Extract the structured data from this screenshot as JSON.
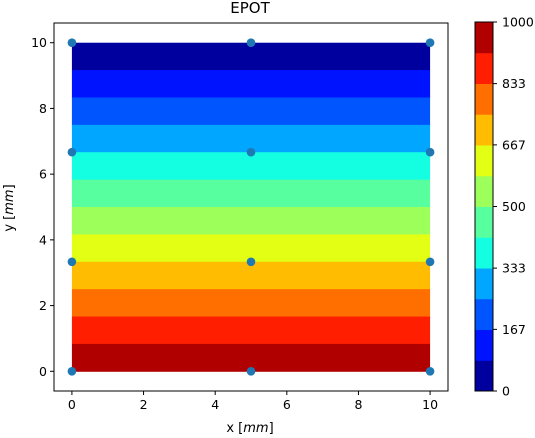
{
  "chart_data": {
    "type": "heatmap",
    "title": "EPOT",
    "xlabel": "x [mm]",
    "ylabel": "y [mm]",
    "xlim": [
      -0.5,
      10.5
    ],
    "ylim": [
      -0.6,
      10.6
    ],
    "x_ticks": [
      0,
      2,
      4,
      6,
      8,
      10
    ],
    "y_ticks": [
      0,
      2,
      4,
      6,
      8,
      10
    ],
    "field": {
      "x_range": [
        0,
        10
      ],
      "y_range": [
        0,
        10
      ],
      "description_values": "EPOT decreases linearly from 1000 at y=0 to 0 at y=10",
      "value_at_y0": 1000,
      "value_at_y10": 0
    },
    "contour_levels": [
      0,
      83.3,
      166.7,
      250,
      333.3,
      416.7,
      500,
      583.3,
      666.7,
      750,
      833.3,
      916.7,
      1000
    ],
    "level_colors": [
      "#00009f",
      "#0013ff",
      "#0055ff",
      "#00a6ff",
      "#14ffe2",
      "#58ff9e",
      "#9cff5a",
      "#e2ff14",
      "#ffbc00",
      "#ff6f00",
      "#ff1f00",
      "#b00000"
    ],
    "colorbar": {
      "ticks": [
        0,
        167,
        333,
        500,
        667,
        833,
        1000
      ],
      "tick_labels": [
        "0",
        "167",
        "333",
        "500",
        "667",
        "833",
        "1000"
      ],
      "range": [
        0,
        1000
      ]
    },
    "nodes": {
      "color": "#1f77b4",
      "points": [
        [
          0,
          0
        ],
        [
          5,
          0
        ],
        [
          10,
          0
        ],
        [
          0,
          3.333
        ],
        [
          5,
          3.333
        ],
        [
          10,
          3.333
        ],
        [
          0,
          6.667
        ],
        [
          5,
          6.667
        ],
        [
          10,
          6.667
        ],
        [
          0,
          10
        ],
        [
          5,
          10
        ],
        [
          10,
          10
        ]
      ]
    }
  }
}
